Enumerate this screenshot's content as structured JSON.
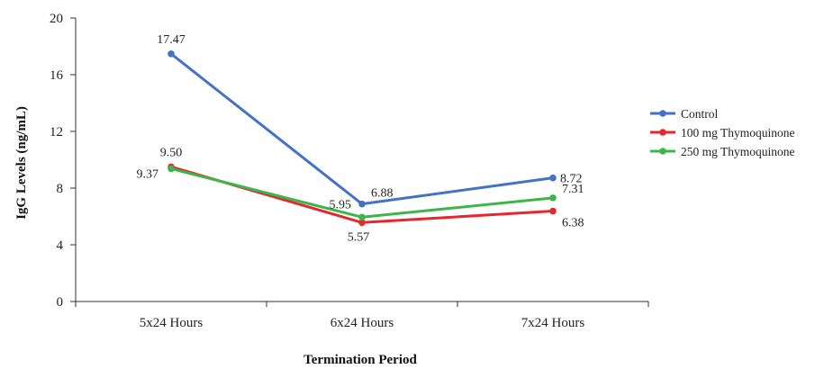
{
  "chart_data": {
    "type": "line",
    "title": "",
    "xlabel": "Termination Period",
    "ylabel": "IgG Levels (ng/mL)",
    "categories": [
      "5x24 Hours",
      "6x24 Hours",
      "7x24 Hours"
    ],
    "ylim": [
      0,
      20
    ],
    "yticks": [
      "0",
      "4",
      "8",
      "12",
      "16",
      "20"
    ],
    "grid": false,
    "legend_position": "right",
    "series": [
      {
        "name": "Control",
        "color": "#4472c4",
        "values": [
          17.47,
          6.88,
          8.72
        ],
        "labels": [
          "17.47",
          "6.88",
          "8.72"
        ]
      },
      {
        "name": "100 mg Thymoquinone",
        "color": "#e8262d",
        "values": [
          9.5,
          5.57,
          6.38
        ],
        "labels": [
          "9.50",
          "5.57",
          "6.38"
        ]
      },
      {
        "name": "250 mg Thymoquinone",
        "color": "#3cb54a",
        "values": [
          9.37,
          5.95,
          7.31
        ],
        "labels": [
          "9.37",
          "5.95",
          "7.31"
        ]
      }
    ]
  }
}
